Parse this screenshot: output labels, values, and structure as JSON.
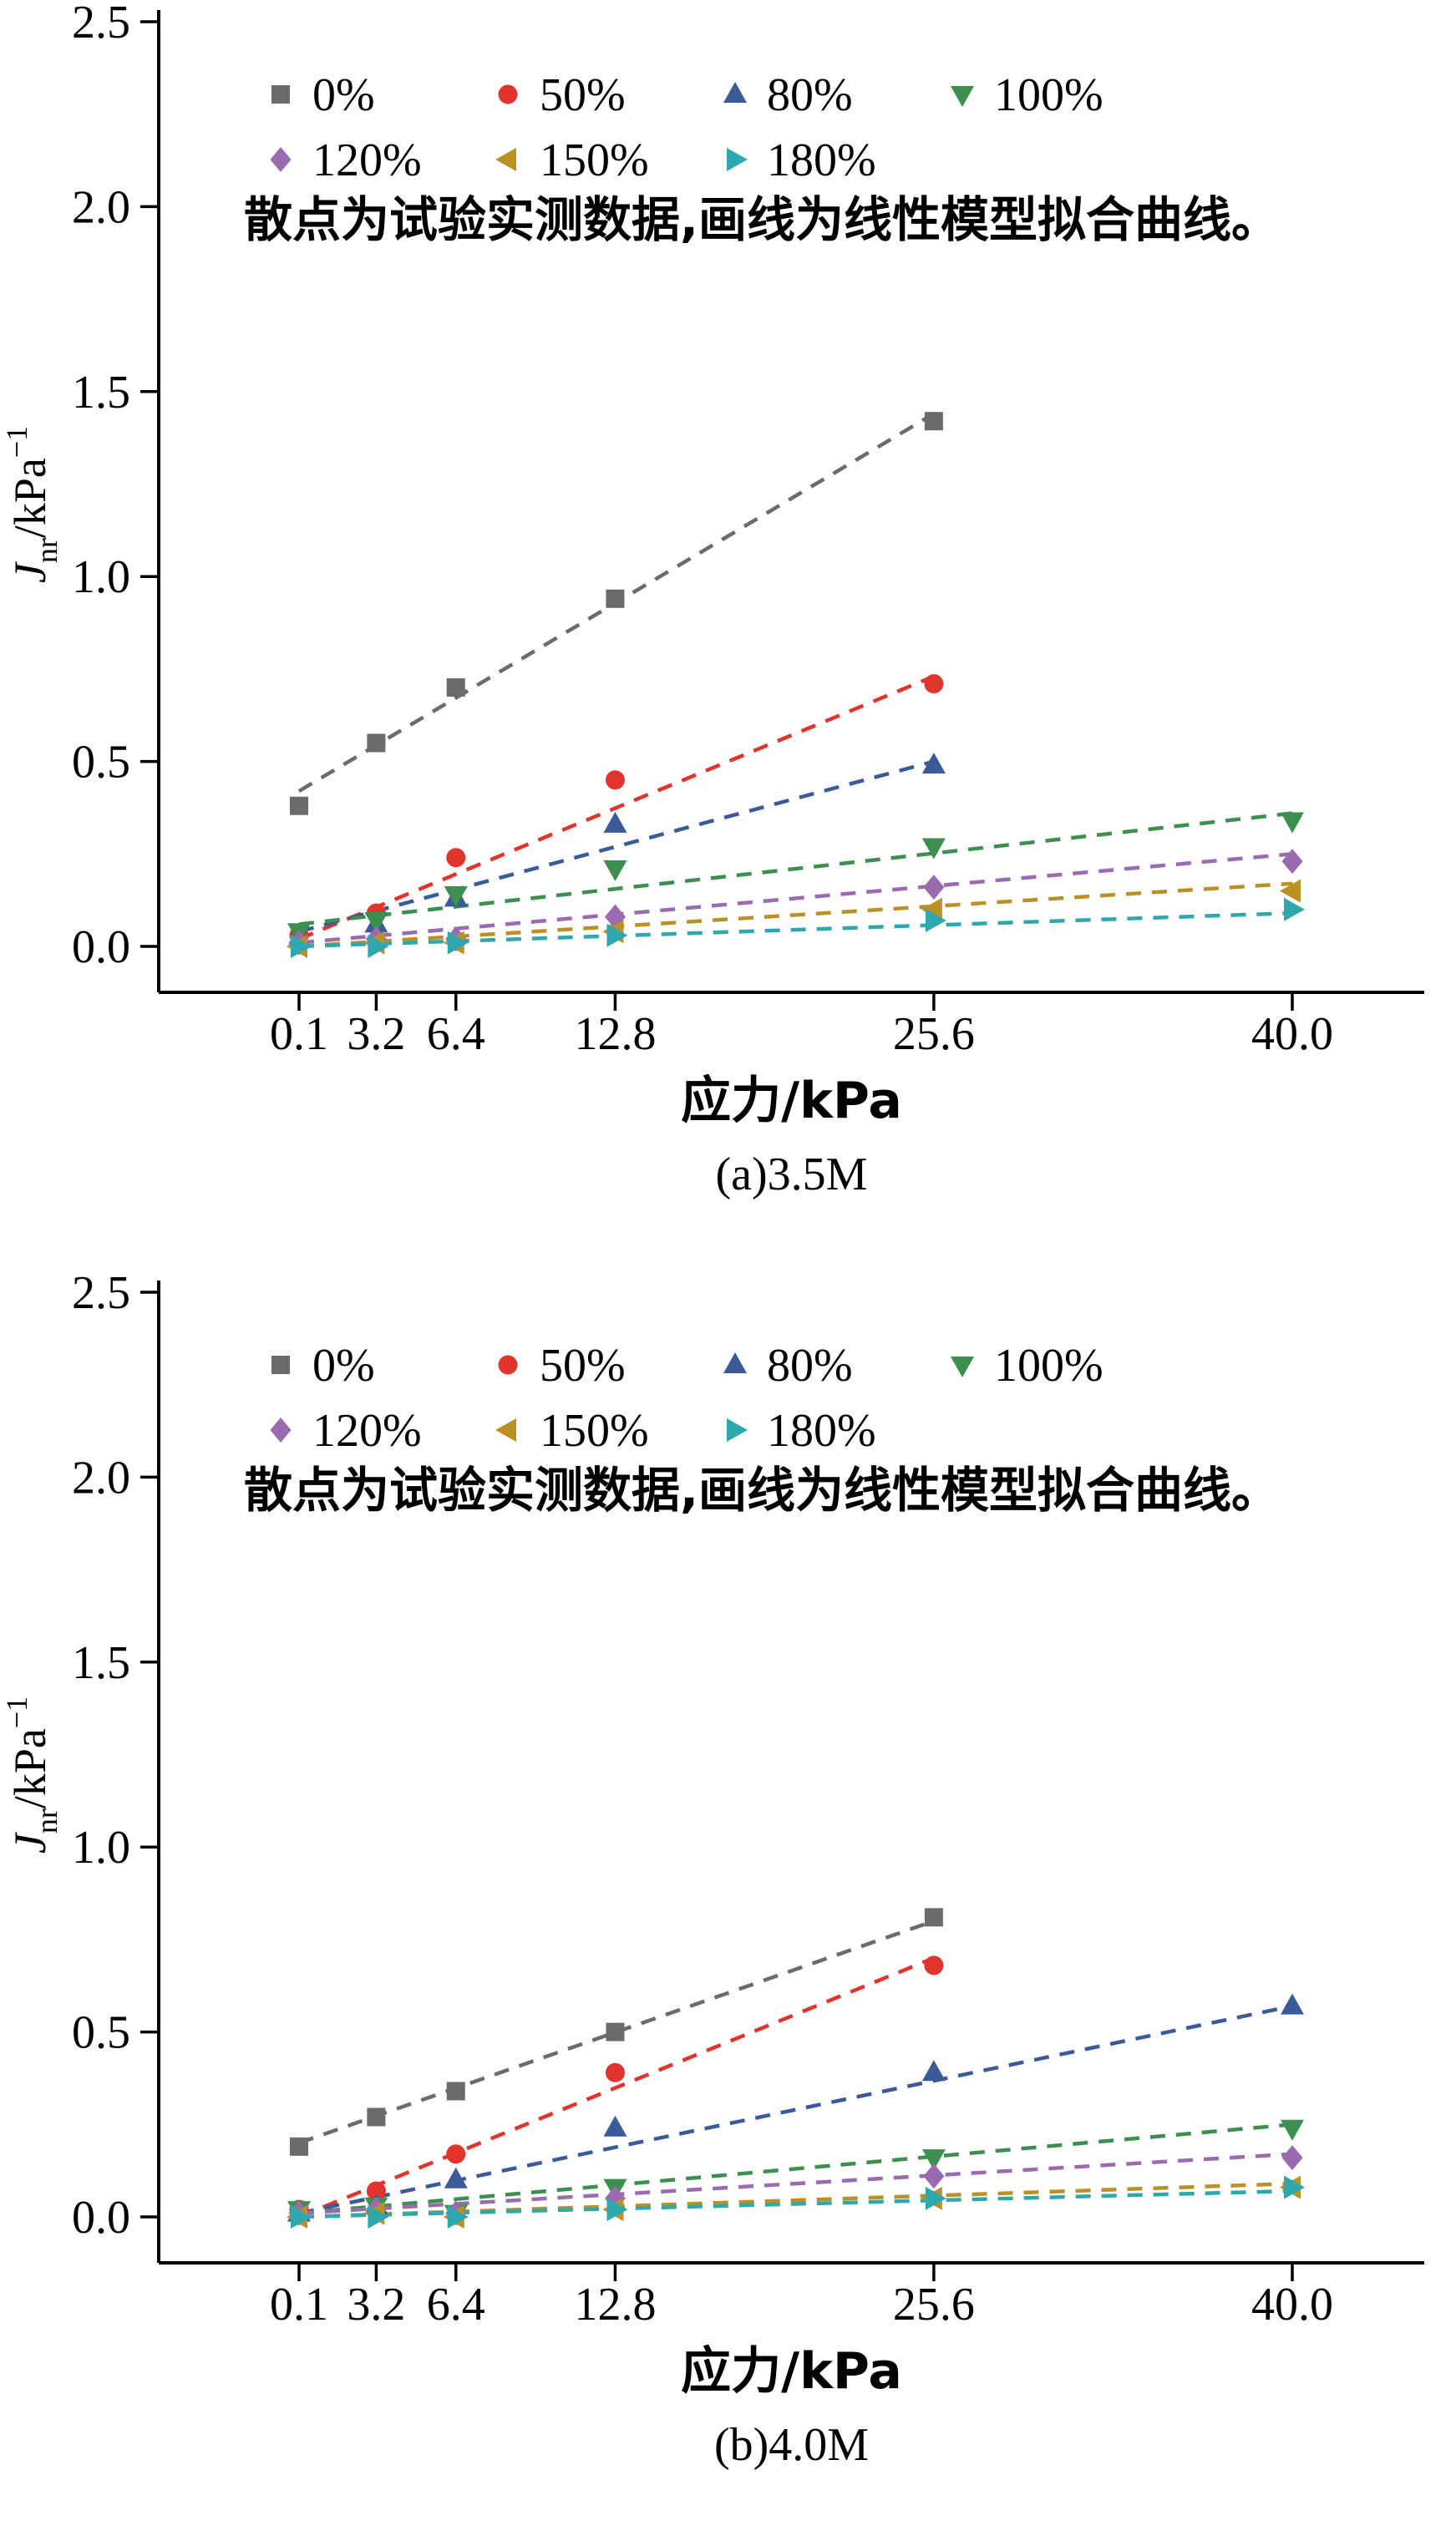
{
  "page": {
    "background": "#ffffff"
  },
  "chart_data": [
    {
      "id": "a",
      "type": "scatter",
      "caption": "(a)3.5M",
      "xlabel": "应力/kPa",
      "ylabel": {
        "symbol": "J",
        "sub": "nr",
        "unit": "/kPa",
        "exp": "−1"
      },
      "note": "散点为试验实测数据,画线为线性模型拟合曲线。",
      "xlim": [
        0.1,
        40.0
      ],
      "ylim": [
        0.0,
        2.5
      ],
      "x_ticks": [
        0.1,
        3.2,
        6.4,
        12.8,
        25.6,
        40.0
      ],
      "x_tick_labels": [
        "0.1",
        "3.2",
        "6.4",
        "12.8",
        "25.6",
        "40.0"
      ],
      "y_ticks": [
        0.0,
        0.5,
        1.0,
        1.5,
        2.0,
        2.5
      ],
      "y_tick_labels": [
        "0.0",
        "0.5",
        "1.0",
        "1.5",
        "2.0",
        "2.5"
      ],
      "legend_position": "top-left-inside",
      "grid": false,
      "series": [
        {
          "name": "0%",
          "marker": "square",
          "color": "#6b6b6b",
          "x": [
            0.1,
            3.2,
            6.4,
            12.8,
            25.6
          ],
          "y": [
            0.38,
            0.55,
            0.7,
            0.94,
            1.42
          ],
          "fit": {
            "x": [
              0.1,
              25.6
            ],
            "y": [
              0.42,
              1.44
            ]
          }
        },
        {
          "name": "50%",
          "marker": "circle",
          "color": "#e0342c",
          "x": [
            0.1,
            3.2,
            6.4,
            12.8,
            25.6
          ],
          "y": [
            0.03,
            0.09,
            0.24,
            0.45,
            0.71
          ],
          "fit": {
            "x": [
              0.1,
              25.6
            ],
            "y": [
              0.02,
              0.73
            ]
          }
        },
        {
          "name": "80%",
          "marker": "triangle-up",
          "color": "#3b5a98",
          "x": [
            0.1,
            3.2,
            6.4,
            12.8,
            25.6
          ],
          "y": [
            0.02,
            0.06,
            0.13,
            0.33,
            0.49
          ],
          "fit": {
            "x": [
              0.1,
              25.6
            ],
            "y": [
              0.04,
              0.5
            ]
          }
        },
        {
          "name": "100%",
          "marker": "triangle-down",
          "color": "#3c8f4e",
          "x": [
            0.1,
            3.2,
            6.4,
            12.8,
            25.6,
            40.0
          ],
          "y": [
            0.04,
            0.07,
            0.14,
            0.21,
            0.27,
            0.34
          ],
          "fit": {
            "x": [
              0.1,
              40.0
            ],
            "y": [
              0.06,
              0.36
            ]
          }
        },
        {
          "name": "120%",
          "marker": "diamond",
          "color": "#9a6bb0",
          "x": [
            0.1,
            3.2,
            6.4,
            12.8,
            25.6,
            40.0
          ],
          "y": [
            0.01,
            0.02,
            0.02,
            0.08,
            0.16,
            0.23
          ],
          "fit": {
            "x": [
              0.1,
              40.0
            ],
            "y": [
              0.01,
              0.25
            ]
          }
        },
        {
          "name": "150%",
          "marker": "triangle-left",
          "color": "#bb9125",
          "x": [
            0.1,
            3.2,
            6.4,
            12.8,
            25.6,
            40.0
          ],
          "y": [
            0.0,
            0.01,
            0.01,
            0.04,
            0.1,
            0.15
          ],
          "fit": {
            "x": [
              0.1,
              40.0
            ],
            "y": [
              0.0,
              0.17
            ]
          }
        },
        {
          "name": "180%",
          "marker": "triangle-right",
          "color": "#2fa8ad",
          "x": [
            0.1,
            3.2,
            6.4,
            12.8,
            25.6,
            40.0
          ],
          "y": [
            0.0,
            0.0,
            0.01,
            0.03,
            0.07,
            0.1
          ],
          "fit": {
            "x": [
              0.1,
              40.0
            ],
            "y": [
              0.0,
              0.09
            ]
          }
        }
      ]
    },
    {
      "id": "b",
      "type": "scatter",
      "caption": "(b)4.0M",
      "xlabel": "应力/kPa",
      "ylabel": {
        "symbol": "J",
        "sub": "nr",
        "unit": "/kPa",
        "exp": "−1"
      },
      "note": "散点为试验实测数据,画线为线性模型拟合曲线。",
      "xlim": [
        0.1,
        40.0
      ],
      "ylim": [
        0.0,
        2.5
      ],
      "x_ticks": [
        0.1,
        3.2,
        6.4,
        12.8,
        25.6,
        40.0
      ],
      "x_tick_labels": [
        "0.1",
        "3.2",
        "6.4",
        "12.8",
        "25.6",
        "40.0"
      ],
      "y_ticks": [
        0.0,
        0.5,
        1.0,
        1.5,
        2.0,
        2.5
      ],
      "y_tick_labels": [
        "0.0",
        "0.5",
        "1.0",
        "1.5",
        "2.0",
        "2.5"
      ],
      "legend_position": "top-left-inside",
      "grid": false,
      "series": [
        {
          "name": "0%",
          "marker": "square",
          "color": "#6b6b6b",
          "x": [
            0.1,
            3.2,
            6.4,
            12.8,
            25.6
          ],
          "y": [
            0.19,
            0.27,
            0.34,
            0.5,
            0.81
          ],
          "fit": {
            "x": [
              0.1,
              25.6
            ],
            "y": [
              0.2,
              0.8
            ]
          }
        },
        {
          "name": "50%",
          "marker": "circle",
          "color": "#e0342c",
          "x": [
            0.1,
            3.2,
            6.4,
            12.8,
            25.6
          ],
          "y": [
            0.02,
            0.07,
            0.17,
            0.39,
            0.68
          ],
          "fit": {
            "x": [
              0.1,
              25.6
            ],
            "y": [
              0.0,
              0.7
            ]
          }
        },
        {
          "name": "80%",
          "marker": "triangle-up",
          "color": "#3b5a98",
          "x": [
            0.1,
            3.2,
            6.4,
            12.8,
            25.6,
            40.0
          ],
          "y": [
            0.01,
            0.03,
            0.1,
            0.24,
            0.39,
            0.57
          ],
          "fit": {
            "x": [
              0.1,
              40.0
            ],
            "y": [
              0.01,
              0.57
            ]
          }
        },
        {
          "name": "100%",
          "marker": "triangle-down",
          "color": "#3c8f4e",
          "x": [
            0.1,
            3.2,
            6.4,
            12.8,
            25.6,
            40.0
          ],
          "y": [
            0.02,
            0.03,
            0.01,
            0.08,
            0.16,
            0.24
          ],
          "fit": {
            "x": [
              0.1,
              40.0
            ],
            "y": [
              0.01,
              0.25
            ]
          }
        },
        {
          "name": "120%",
          "marker": "diamond",
          "color": "#9a6bb0",
          "x": [
            0.1,
            3.2,
            6.4,
            12.8,
            25.6,
            40.0
          ],
          "y": [
            0.01,
            0.02,
            0.01,
            0.05,
            0.11,
            0.16
          ],
          "fit": {
            "x": [
              0.1,
              40.0
            ],
            "y": [
              0.01,
              0.17
            ]
          }
        },
        {
          "name": "150%",
          "marker": "triangle-left",
          "color": "#bb9125",
          "x": [
            0.1,
            3.2,
            6.4,
            12.8,
            25.6,
            40.0
          ],
          "y": [
            0.0,
            0.01,
            0.0,
            0.02,
            0.05,
            0.08
          ],
          "fit": {
            "x": [
              0.1,
              40.0
            ],
            "y": [
              0.0,
              0.09
            ]
          }
        },
        {
          "name": "180%",
          "marker": "triangle-right",
          "color": "#2fa8ad",
          "x": [
            0.1,
            3.2,
            6.4,
            12.8,
            25.6,
            40.0
          ],
          "y": [
            0.0,
            0.0,
            0.0,
            0.02,
            0.05,
            0.08
          ],
          "fit": {
            "x": [
              0.1,
              40.0
            ],
            "y": [
              0.0,
              0.07
            ]
          }
        }
      ]
    }
  ]
}
